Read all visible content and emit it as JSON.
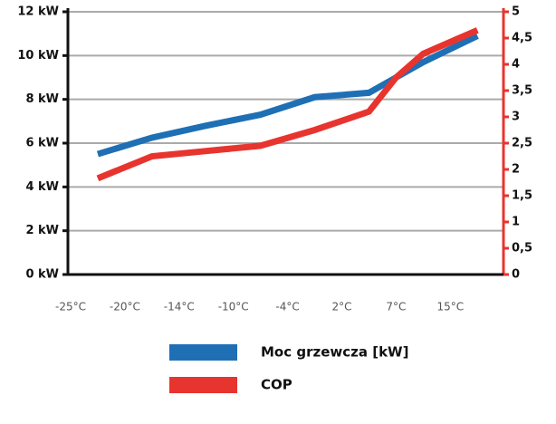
{
  "chart_data": {
    "type": "line",
    "x": [
      0.5,
      1.5,
      2.5,
      3.5,
      4.5,
      5.5,
      6,
      6.5,
      7.5
    ],
    "xlim": [
      -0.05,
      7.98
    ],
    "xticks": [
      {
        "value": 0,
        "label": "-25°C"
      },
      {
        "value": 1,
        "label": "-20°C"
      },
      {
        "value": 2,
        "label": "-14°C"
      },
      {
        "value": 3,
        "label": "-10°C"
      },
      {
        "value": 4,
        "label": "-4°C"
      },
      {
        "value": 5,
        "label": "2°C"
      },
      {
        "value": 6,
        "label": "7°C"
      },
      {
        "value": 7,
        "label": "15°C"
      }
    ],
    "ylim": [
      0,
      12
    ],
    "yticks": [
      {
        "value": 0,
        "label": "0 kW"
      },
      {
        "value": 2,
        "label": "2 kW"
      },
      {
        "value": 4,
        "label": "4 kW"
      },
      {
        "value": 6,
        "label": "6 kW"
      },
      {
        "value": 8,
        "label": "8 kW"
      },
      {
        "value": 10,
        "label": "10 kW"
      },
      {
        "value": 12,
        "label": "12 kW"
      }
    ],
    "y2lim": [
      0,
      5
    ],
    "y2ticks": [
      0,
      {
        "value": 0.5,
        "label": "0,5"
      },
      1,
      {
        "value": 1.5,
        "label": "1,5"
      },
      2,
      {
        "value": 2.5,
        "label": "2,5"
      },
      3,
      {
        "value": 3.5,
        "label": "3,5"
      },
      4,
      {
        "value": 4.5,
        "label": "4,5"
      },
      5
    ],
    "y2color": "#e8342e",
    "grid": true,
    "series": [
      {
        "name": "Moc grzewcza [kW]",
        "color": "#1f6fb5",
        "values": [
          5.5,
          6.25,
          6.8,
          7.3,
          8.1,
          8.3,
          9.0,
          9.7,
          10.9
        ]
      },
      {
        "name": "COP",
        "color": "#e8342e",
        "axis": "y2",
        "values": [
          1.83,
          2.25,
          2.35,
          2.45,
          2.75,
          3.1,
          3.75,
          4.2,
          4.65
        ]
      }
    ]
  }
}
